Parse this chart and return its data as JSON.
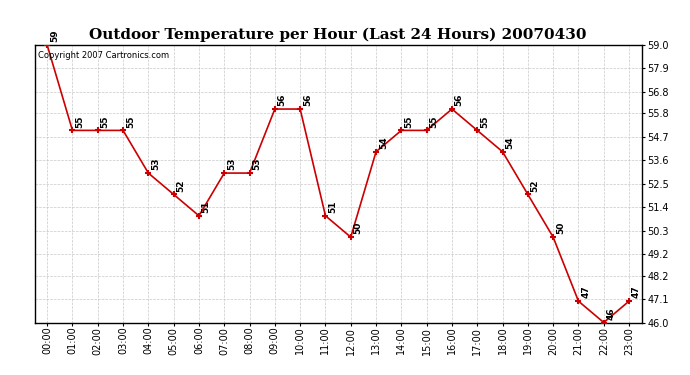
{
  "title": "Outdoor Temperature per Hour (Last 24 Hours) 20070430",
  "copyright_text": "Copyright 2007 Cartronics.com",
  "hours": [
    "00:00",
    "01:00",
    "02:00",
    "03:00",
    "04:00",
    "05:00",
    "06:00",
    "07:00",
    "08:00",
    "09:00",
    "10:00",
    "11:00",
    "12:00",
    "13:00",
    "14:00",
    "15:00",
    "16:00",
    "17:00",
    "18:00",
    "19:00",
    "20:00",
    "21:00",
    "22:00",
    "23:00"
  ],
  "temps": [
    59,
    55,
    55,
    55,
    53,
    52,
    51,
    53,
    53,
    56,
    56,
    51,
    50,
    54,
    55,
    55,
    56,
    55,
    54,
    52,
    50,
    47,
    46,
    47
  ],
  "ylim_min": 46.0,
  "ylim_max": 59.0,
  "yticks": [
    46.0,
    47.1,
    48.2,
    49.2,
    50.3,
    51.4,
    52.5,
    53.6,
    54.7,
    55.8,
    56.8,
    57.9,
    59.0
  ],
  "line_color": "#cc0000",
  "marker_color": "#cc0000",
  "bg_color": "#ffffff",
  "grid_color": "#bbbbbb",
  "title_fontsize": 11,
  "label_fontsize": 7,
  "annotation_fontsize": 6.5,
  "copyright_fontsize": 6
}
